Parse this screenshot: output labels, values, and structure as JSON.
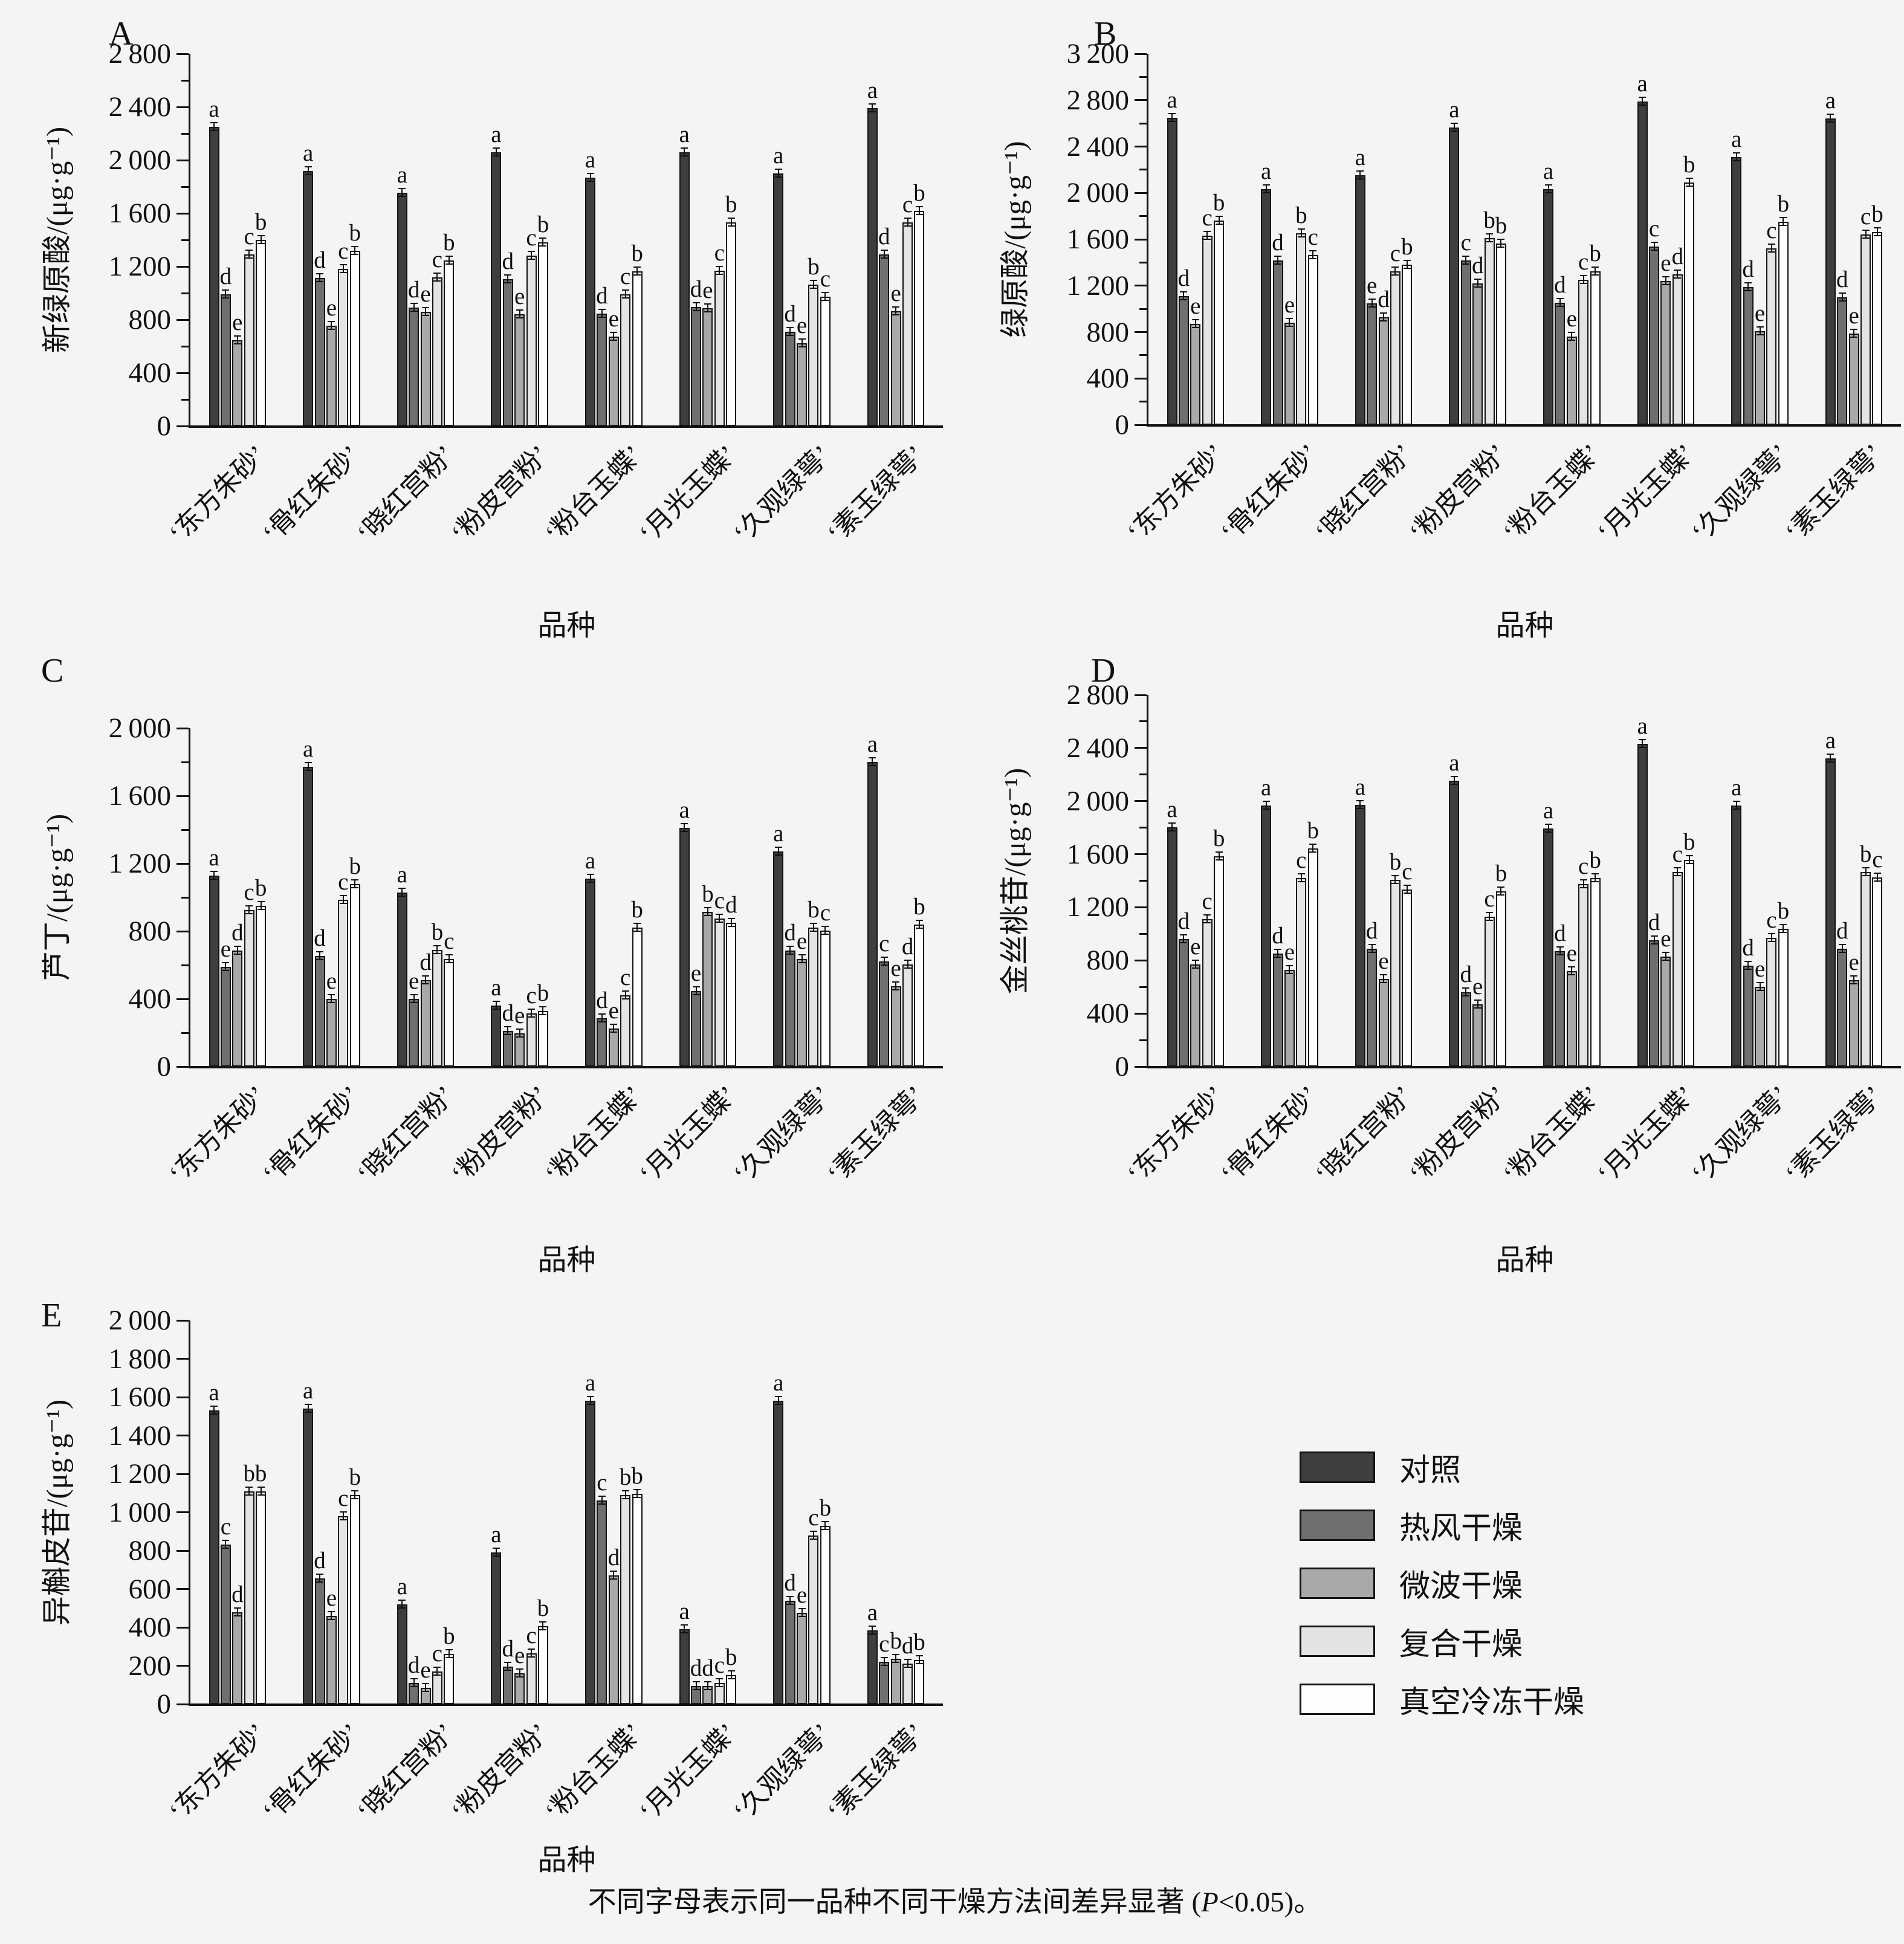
{
  "figure_caption": {
    "prefix": "不同字母表示同一品种不同干燥方法间差异显著 (",
    "italic": "P",
    "suffix": "<0.05)。"
  },
  "legend": {
    "items": [
      {
        "label": "对照",
        "color": "#3e3e3e"
      },
      {
        "label": "热风干燥",
        "color": "#6f6f6f"
      },
      {
        "label": "微波干燥",
        "color": "#a9a9a9"
      },
      {
        "label": "复合干燥",
        "color": "#e4e4e4"
      },
      {
        "label": "真空冷冻干燥",
        "color": "#fdfdfd"
      }
    ]
  },
  "chart_data": [
    {
      "type": "bar",
      "panel_label": "A",
      "ylabel": "新绿原酸/(μg·g⁻¹)",
      "xlabel": "品种",
      "ylim": [
        0,
        2800
      ],
      "ytick_step": 400,
      "minor_ticks": true,
      "categories": [
        "‘东方朱砂’",
        "‘骨红朱砂’",
        "‘晓红宫粉’",
        "‘粉皮宫粉’",
        "‘粉台玉蝶’",
        "‘月光玉蝶’",
        "‘久观绿萼’",
        "‘素玉绿萼’"
      ],
      "series": [
        {
          "name": "对照",
          "color": "#3e3e3e",
          "values": [
            2250,
            1920,
            1755,
            2060,
            1870,
            2060,
            1900,
            2390
          ],
          "letters": [
            "a",
            "a",
            "a",
            "a",
            "a",
            "a",
            "a",
            "a"
          ]
        },
        {
          "name": "热风干燥",
          "color": "#6f6f6f",
          "values": [
            990,
            1115,
            890,
            1105,
            845,
            895,
            710,
            1290
          ],
          "letters": [
            "d",
            "d",
            "d",
            "d",
            "d",
            "d",
            "d",
            "d"
          ]
        },
        {
          "name": "微波干燥",
          "color": "#a9a9a9",
          "values": [
            645,
            755,
            860,
            840,
            675,
            885,
            625,
            865
          ],
          "letters": [
            "e",
            "e",
            "e",
            "e",
            "e",
            "e",
            "e",
            "e"
          ]
        },
        {
          "name": "复合干燥",
          "color": "#e4e4e4",
          "values": [
            1290,
            1180,
            1120,
            1280,
            990,
            1170,
            1065,
            1530
          ],
          "letters": [
            "c",
            "c",
            "c",
            "c",
            "c",
            "c",
            "b",
            "c"
          ]
        },
        {
          "name": "真空冷冻干燥",
          "color": "#fdfdfd",
          "values": [
            1400,
            1320,
            1245,
            1380,
            1165,
            1530,
            975,
            1620
          ],
          "letters": [
            "b",
            "b",
            "b",
            "b",
            "b",
            "b",
            "c",
            "b"
          ]
        }
      ]
    },
    {
      "type": "bar",
      "panel_label": "B",
      "ylabel": "绿原酸/(μg·g⁻¹)",
      "xlabel": "品种",
      "ylim": [
        0,
        3200
      ],
      "ytick_step": 400,
      "minor_ticks": true,
      "categories": [
        "‘东方朱砂’",
        "‘骨红朱砂’",
        "‘晓红宫粉’",
        "‘粉皮宫粉’",
        "‘粉台玉蝶’",
        "‘月光玉蝶’",
        "‘久观绿萼’",
        "‘素玉绿萼’"
      ],
      "series": [
        {
          "name": "对照",
          "color": "#3e3e3e",
          "values": [
            2650,
            2030,
            2150,
            2565,
            2030,
            2790,
            2310,
            2640
          ],
          "letters": [
            "a",
            "a",
            "a",
            "a",
            "a",
            "a",
            "a",
            "a"
          ]
        },
        {
          "name": "热风干燥",
          "color": "#6f6f6f",
          "values": [
            1110,
            1415,
            1045,
            1415,
            1055,
            1540,
            1190,
            1100
          ],
          "letters": [
            "d",
            "d",
            "e",
            "c",
            "d",
            "c",
            "d",
            "d"
          ]
        },
        {
          "name": "微波干燥",
          "color": "#a9a9a9",
          "values": [
            870,
            880,
            930,
            1220,
            760,
            1240,
            810,
            785
          ],
          "letters": [
            "e",
            "e",
            "d",
            "d",
            "e",
            "e",
            "e",
            "e"
          ]
        },
        {
          "name": "复合干燥",
          "color": "#e4e4e4",
          "values": [
            1630,
            1650,
            1325,
            1610,
            1250,
            1300,
            1520,
            1640
          ],
          "letters": [
            "c",
            "b",
            "c",
            "b",
            "c",
            "d",
            "c",
            "c"
          ]
        },
        {
          "name": "真空冷冻干燥",
          "color": "#fdfdfd",
          "values": [
            1760,
            1465,
            1380,
            1565,
            1325,
            2090,
            1750,
            1665
          ],
          "letters": [
            "b",
            "c",
            "b",
            "b",
            "b",
            "b",
            "b",
            "b"
          ]
        }
      ]
    },
    {
      "type": "bar",
      "panel_label": "C",
      "ylabel": "芦丁/(μg·g⁻¹)",
      "xlabel": "品种",
      "ylim": [
        0,
        2000
      ],
      "ytick_step": 400,
      "minor_ticks": true,
      "categories": [
        "‘东方朱砂’",
        "‘骨红朱砂’",
        "‘晓红宫粉’",
        "‘粉皮宫粉’",
        "‘粉台玉蝶’",
        "‘月光玉蝶’",
        "‘久观绿萼’",
        "‘素玉绿萼’"
      ],
      "series": [
        {
          "name": "对照",
          "color": "#3e3e3e",
          "values": [
            1130,
            1770,
            1030,
            360,
            1110,
            1410,
            1270,
            1800
          ],
          "letters": [
            "a",
            "a",
            "a",
            "a",
            "a",
            "a",
            "a",
            "a"
          ]
        },
        {
          "name": "热风干燥",
          "color": "#6f6f6f",
          "values": [
            590,
            655,
            400,
            210,
            285,
            445,
            685,
            620
          ],
          "letters": [
            "e",
            "d",
            "e",
            "d",
            "d",
            "e",
            "d",
            "c"
          ]
        },
        {
          "name": "微波干燥",
          "color": "#a9a9a9",
          "values": [
            685,
            400,
            510,
            195,
            225,
            915,
            635,
            475
          ],
          "letters": [
            "d",
            "e",
            "d",
            "e",
            "e",
            "b",
            "e",
            "e"
          ]
        },
        {
          "name": "复合干燥",
          "color": "#e4e4e4",
          "values": [
            925,
            985,
            690,
            315,
            420,
            875,
            820,
            605
          ],
          "letters": [
            "c",
            "c",
            "b",
            "c",
            "c",
            "c",
            "b",
            "d"
          ]
        },
        {
          "name": "真空冷冻干燥",
          "color": "#fdfdfd",
          "values": [
            950,
            1080,
            635,
            330,
            820,
            850,
            805,
            840
          ],
          "letters": [
            "b",
            "b",
            "c",
            "b",
            "b",
            "d",
            "c",
            "b"
          ]
        }
      ]
    },
    {
      "type": "bar",
      "panel_label": "D",
      "ylabel": "金丝桃苷/(μg·g⁻¹)",
      "xlabel": "品种",
      "ylim": [
        0,
        2800
      ],
      "ytick_step": 400,
      "minor_ticks": true,
      "categories": [
        "‘东方朱砂’",
        "‘骨红朱砂’",
        "‘晓红宫粉’",
        "‘粉皮宫粉’",
        "‘粉台玉蝶’",
        "‘月光玉蝶’",
        "‘久观绿萼’",
        "‘素玉绿萼’"
      ],
      "series": [
        {
          "name": "对照",
          "color": "#3e3e3e",
          "values": [
            1805,
            1965,
            1970,
            2155,
            1795,
            2430,
            1965,
            2320
          ],
          "letters": [
            "a",
            "a",
            "a",
            "a",
            "a",
            "a",
            "a",
            "a"
          ]
        },
        {
          "name": "热风干燥",
          "color": "#6f6f6f",
          "values": [
            960,
            850,
            890,
            560,
            870,
            950,
            760,
            890
          ],
          "letters": [
            "d",
            "d",
            "d",
            "d",
            "d",
            "d",
            "d",
            "d"
          ]
        },
        {
          "name": "微波干燥",
          "color": "#a9a9a9",
          "values": [
            770,
            730,
            660,
            470,
            720,
            830,
            600,
            650
          ],
          "letters": [
            "e",
            "e",
            "e",
            "e",
            "e",
            "e",
            "e",
            "e"
          ]
        },
        {
          "name": "复合干燥",
          "color": "#e4e4e4",
          "values": [
            1110,
            1420,
            1405,
            1130,
            1375,
            1465,
            970,
            1465
          ],
          "letters": [
            "c",
            "c",
            "b",
            "c",
            "c",
            "c",
            "c",
            "b"
          ]
        },
        {
          "name": "真空冷冻干燥",
          "color": "#fdfdfd",
          "values": [
            1585,
            1645,
            1335,
            1320,
            1420,
            1555,
            1040,
            1425
          ],
          "letters": [
            "b",
            "b",
            "c",
            "b",
            "b",
            "b",
            "b",
            "c"
          ]
        }
      ]
    },
    {
      "type": "bar",
      "panel_label": "E",
      "ylabel": "异槲皮苷/(μg·g⁻¹)",
      "xlabel": "品种",
      "ylim": [
        0,
        2000
      ],
      "ytick_step": 200,
      "minor_ticks": false,
      "categories": [
        "‘东方朱砂’",
        "‘骨红朱砂’",
        "‘晓红宫粉’",
        "‘粉皮宫粉’",
        "‘粉台玉蝶’",
        "‘月光玉蝶’",
        "‘久观绿萼’",
        "‘素玉绿萼’"
      ],
      "series": [
        {
          "name": "对照",
          "color": "#3e3e3e",
          "values": [
            1530,
            1540,
            520,
            790,
            1580,
            390,
            1580,
            385
          ],
          "letters": [
            "a",
            "a",
            "a",
            "a",
            "a",
            "a",
            "a",
            "a"
          ]
        },
        {
          "name": "热风干燥",
          "color": "#6f6f6f",
          "values": [
            830,
            655,
            110,
            195,
            1060,
            95,
            540,
            220
          ],
          "letters": [
            "c",
            "d",
            "d",
            "d",
            "c",
            "d",
            "d",
            "c"
          ]
        },
        {
          "name": "微波干燥",
          "color": "#a9a9a9",
          "values": [
            480,
            460,
            85,
            160,
            670,
            95,
            475,
            235
          ],
          "letters": [
            "d",
            "e",
            "e",
            "e",
            "d",
            "d",
            "e",
            "b"
          ]
        },
        {
          "name": "复合干燥",
          "color": "#e4e4e4",
          "values": [
            1110,
            980,
            170,
            265,
            1090,
            110,
            880,
            210
          ],
          "letters": [
            "b",
            "c",
            "c",
            "c",
            "b",
            "c",
            "c",
            "d"
          ]
        },
        {
          "name": "真空冷冻干燥",
          "color": "#fdfdfd",
          "values": [
            1110,
            1090,
            260,
            405,
            1095,
            150,
            930,
            230
          ],
          "letters": [
            "b",
            "b",
            "b",
            "b",
            "b",
            "b",
            "b",
            "b"
          ]
        }
      ]
    }
  ]
}
